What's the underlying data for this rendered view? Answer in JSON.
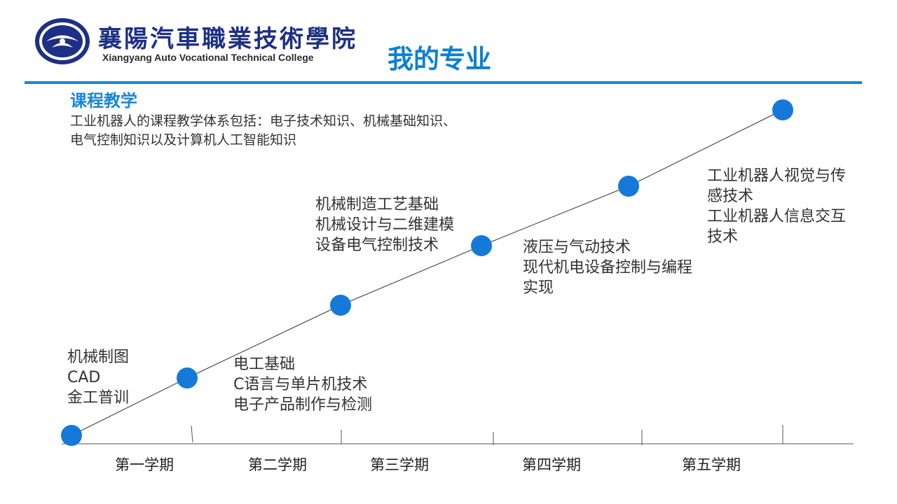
{
  "header": {
    "college_name_cn": "襄陽汽車職業技術學院",
    "college_name_en": "Xiangyang Auto Vocational Technical College",
    "page_title": "我的专业"
  },
  "section": {
    "title": "课程教学",
    "description": "工业机器人的课程教学体系包括：电子技术知识、机械基础知识、电气控制知识以及计算机人工智能知识"
  },
  "course_groups": [
    [
      "机械制图",
      "CAD",
      "金工普训"
    ],
    [
      "电工基础",
      "C语言与单片机技术",
      "电子产品制作与检测"
    ],
    [
      "机械制造工艺基础",
      "机械设计与二维建模",
      "设备电气控制技术"
    ],
    [
      "液压与气动技术",
      "现代机电设备控制与编程",
      "实现"
    ],
    [
      "工业机器人视觉与传",
      "感技术",
      "工业机器人信息交互",
      "技术"
    ]
  ],
  "semesters": [
    "第一学期",
    "第二学期",
    "第三学期",
    "第四学期",
    "第五学期"
  ],
  "colors": {
    "accent": "#0b7fd4",
    "rule": "#1a86d6",
    "dot": "#1479d8",
    "logo": "#1d2f86"
  }
}
